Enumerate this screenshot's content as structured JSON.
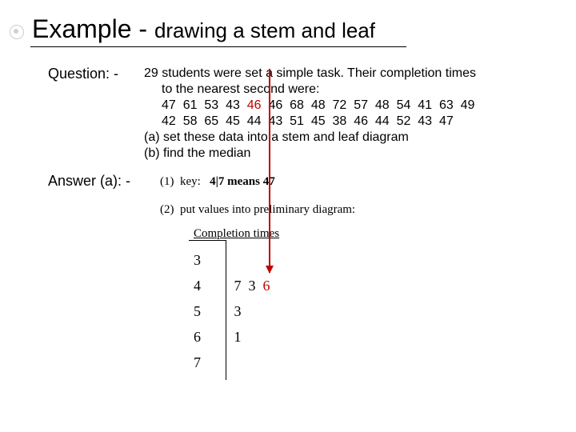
{
  "title": {
    "main": "Example - ",
    "sub": "drawing a stem and leaf"
  },
  "question": {
    "label": "Question: -",
    "line1": "29 students were set a simple task.  Their completion times",
    "line2": "to the nearest second were:",
    "data1a": "47  61  53  43  ",
    "data1_red": "46",
    "data1b": "  46  68  48  72  57  48  54  41  63  49",
    "data2": "42  58  65  45  44  43  51  45  38  46  44  52  43  47",
    "taskA": "(a) set these data into a stem and leaf diagram",
    "taskB": "(b) find the median"
  },
  "answer": {
    "label": "Answer (a): -",
    "step1_prefix": "(1)  key:   ",
    "step1_bold": "4|7 means 47",
    "step2": "(2)  put values into preliminary diagram:",
    "diagram_title": "Completion times"
  },
  "stems": {
    "r0": "3",
    "r1": "4",
    "r1_leaves_a": "7  3  ",
    "r1_leaves_red": "6",
    "r2": "5",
    "r2_leaves": "3",
    "r3": "6",
    "r3_leaves": "1",
    "r4": "7"
  },
  "colors": {
    "red": "#c00000"
  }
}
